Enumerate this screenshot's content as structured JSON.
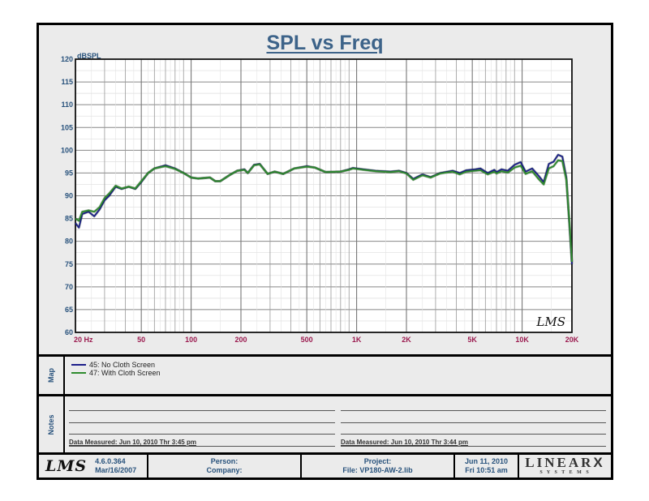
{
  "chart_data": {
    "type": "line",
    "title": "SPL vs Freq",
    "xlabel": "Hz",
    "ylabel": "dBSPL",
    "xscale": "log",
    "xlim": [
      20,
      20000
    ],
    "ylim": [
      60,
      120
    ],
    "grid": true,
    "x_tick_labels": [
      "20 Hz",
      "50",
      "100",
      "200",
      "500",
      "1K",
      "2K",
      "5K",
      "10K",
      "20K"
    ],
    "x_tick_values": [
      20,
      50,
      100,
      200,
      500,
      1000,
      2000,
      5000,
      10000,
      20000
    ],
    "y_tick_values": [
      60,
      65,
      70,
      75,
      80,
      85,
      90,
      95,
      100,
      105,
      110,
      115,
      120
    ],
    "legend_position": "below-plot (Map panel)",
    "series": [
      {
        "name": "45: No Cloth Screen",
        "color": "#1c1f8a",
        "x": [
          20,
          21,
          22,
          24,
          26,
          28,
          30,
          32,
          35,
          38,
          42,
          46,
          50,
          55,
          60,
          70,
          80,
          90,
          100,
          110,
          130,
          140,
          150,
          170,
          190,
          210,
          220,
          240,
          260,
          290,
          320,
          360,
          420,
          500,
          560,
          650,
          800,
          900,
          950,
          1000,
          1100,
          1300,
          1600,
          1800,
          2000,
          2200,
          2500,
          2800,
          3200,
          3800,
          4200,
          4600,
          5200,
          5600,
          6200,
          6800,
          7000,
          7500,
          8200,
          9000,
          9800,
          10500,
          11500,
          12500,
          13500,
          14500,
          15500,
          16500,
          17500,
          18500,
          19300,
          20000
        ],
        "values": [
          84,
          83,
          86,
          86.5,
          85.5,
          87,
          89,
          90,
          92,
          91.5,
          92,
          91.5,
          93,
          95,
          96,
          96.7,
          96,
          95,
          94,
          93.8,
          94,
          93.2,
          93.2,
          94.5,
          95.5,
          95.8,
          95,
          96.8,
          97,
          94.8,
          95.3,
          94.8,
          96,
          96.5,
          96.2,
          95.2,
          95.3,
          95.8,
          96.1,
          96,
          95.8,
          95.5,
          95.3,
          95.5,
          95,
          93.7,
          94.7,
          94.1,
          95,
          95.5,
          95,
          95.6,
          95.8,
          96,
          95,
          95.7,
          95.2,
          95.8,
          95.5,
          96.8,
          97.4,
          95.3,
          96,
          94.5,
          93,
          97,
          97.5,
          99,
          98.6,
          94,
          84,
          75
        ]
      },
      {
        "name": "47: With Cloth Screen",
        "color": "#2e8b2e",
        "x": [
          20,
          21,
          22,
          24,
          26,
          28,
          30,
          32,
          35,
          38,
          42,
          46,
          50,
          55,
          60,
          70,
          80,
          90,
          100,
          110,
          130,
          140,
          150,
          170,
          190,
          210,
          220,
          240,
          260,
          290,
          320,
          360,
          420,
          500,
          560,
          650,
          800,
          900,
          950,
          1000,
          1100,
          1300,
          1600,
          1800,
          2000,
          2200,
          2500,
          2800,
          3200,
          3800,
          4200,
          4600,
          5200,
          5600,
          6200,
          6800,
          7000,
          7500,
          8200,
          9000,
          9800,
          10500,
          11500,
          12500,
          13500,
          14500,
          15500,
          16500,
          17500,
          18500,
          19300,
          20000
        ],
        "values": [
          85,
          84.5,
          86.5,
          86.8,
          86.5,
          87.5,
          89.5,
          90.5,
          92.2,
          91.6,
          92,
          91.6,
          93.2,
          95,
          96,
          96.5,
          95.9,
          95,
          94,
          93.8,
          94,
          93.2,
          93.2,
          94.5,
          95.5,
          95.7,
          95,
          96.7,
          96.9,
          94.8,
          95.3,
          94.8,
          96,
          96.4,
          96.2,
          95.2,
          95.3,
          95.7,
          96,
          95.9,
          95.7,
          95.4,
          95.2,
          95.4,
          94.9,
          93.5,
          94.5,
          94,
          94.9,
          95.3,
          94.7,
          95.3,
          95.5,
          95.6,
          94.7,
          95.3,
          94.9,
          95.4,
          95.1,
          96.2,
          96.6,
          94.8,
          95.4,
          93.8,
          92.5,
          96,
          96.5,
          97.8,
          97.6,
          93.5,
          84.5,
          75.5
        ]
      }
    ]
  },
  "header": {
    "title": "SPL vs Freq",
    "y_unit": "dBSPL"
  },
  "watermark": "LMS",
  "map": {
    "label": "Map",
    "items": [
      {
        "label": "45: No Cloth Screen",
        "color": "#1c1f8a"
      },
      {
        "label": "47: With Cloth Screen",
        "color": "#2e8b2e"
      }
    ]
  },
  "notes": {
    "label": "Notes",
    "left_measured": "Data Measured: Jun 10, 2010  Thr  3:45 pm",
    "right_measured": "Data Measured: Jun 10, 2010  Thr  3:44 pm"
  },
  "footer": {
    "logo": "LMS",
    "version": "4.6.0.364",
    "version_date": "Mar/16/2007",
    "person": "Person:",
    "company": "Company:",
    "project": "Project:",
    "file": "File: VP180-AW-2.lib",
    "date": "Jun 11, 2010",
    "time": "Fri 10:51 am",
    "brand": "LINEAR",
    "brand_x": "X",
    "brand_sub": "S Y S T E M S"
  },
  "colors": {
    "title": "#3d6389",
    "axis_text": "#28527c",
    "x_tick_text": "#9b1b4f",
    "panel_bg": "#ebebeb"
  }
}
